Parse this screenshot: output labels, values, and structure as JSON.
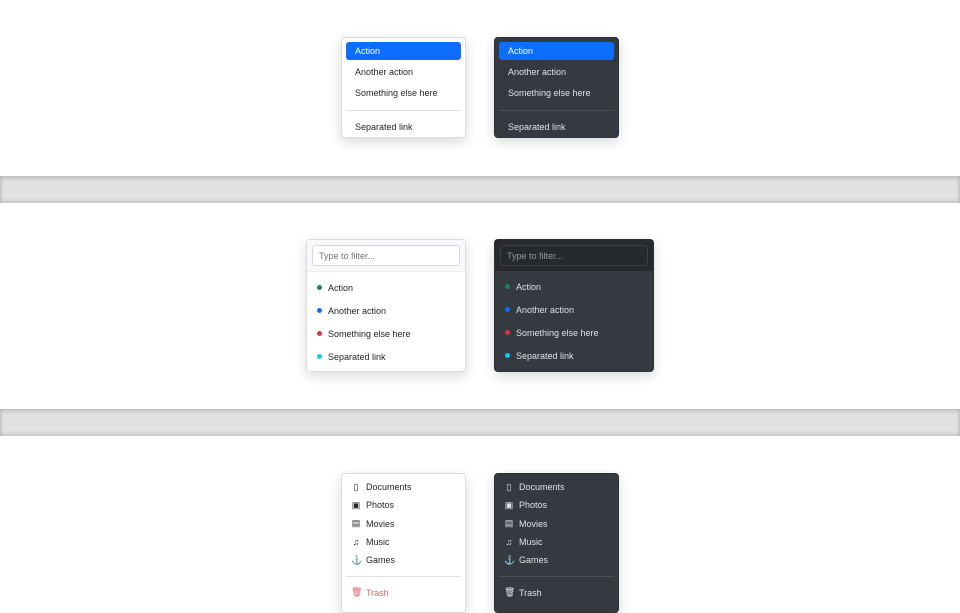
{
  "menu1": {
    "items": [
      "Action",
      "Another action",
      "Something else here"
    ],
    "separated": "Separated link",
    "active": "Action"
  },
  "menu2": {
    "placeholder": "Type to filter...",
    "items": [
      {
        "label": "Action",
        "color": "#198754"
      },
      {
        "label": "Another action",
        "color": "#0d6efd"
      },
      {
        "label": "Something else here",
        "color": "#dc3545"
      },
      {
        "label": "Separated link",
        "color": "#0dcaf0"
      }
    ]
  },
  "menu3": {
    "items": [
      {
        "label": "Documents",
        "icon": "file-icon",
        "glyph": "▯"
      },
      {
        "label": "Photos",
        "icon": "image-icon",
        "glyph": "▣"
      },
      {
        "label": "Movies",
        "icon": "film-icon",
        "glyph": "▤"
      },
      {
        "label": "Music",
        "icon": "music-note-icon",
        "glyph": "♫"
      },
      {
        "label": "Games",
        "icon": "joystick-icon",
        "glyph": "⚓"
      }
    ],
    "trash": {
      "label": "Trash",
      "icon": "trash-icon",
      "glyph": "🗑",
      "color": "#dc3545"
    }
  }
}
